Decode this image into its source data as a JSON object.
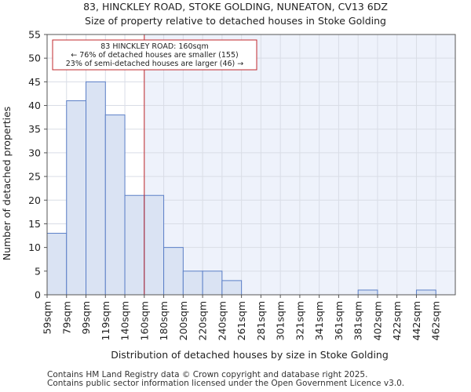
{
  "chart_data": {
    "type": "bar",
    "title_line1": "83, HINCKLEY ROAD, STOKE GOLDING, NUNEATON, CV13 6DZ",
    "title_line2": "Size of property relative to detached houses in Stoke Golding",
    "xlabel": "Distribution of detached houses by size in Stoke Golding",
    "ylabel": "Number of detached properties",
    "ylim": [
      0,
      55
    ],
    "yticks": [
      0,
      5,
      10,
      15,
      20,
      25,
      30,
      35,
      40,
      45,
      50,
      55
    ],
    "categories": [
      "59sqm",
      "79sqm",
      "99sqm",
      "119sqm",
      "140sqm",
      "160sqm",
      "180sqm",
      "200sqm",
      "220sqm",
      "240sqm",
      "261sqm",
      "281sqm",
      "301sqm",
      "321sqm",
      "341sqm",
      "361sqm",
      "381sqm",
      "402sqm",
      "422sqm",
      "442sqm",
      "462sqm"
    ],
    "values": [
      13,
      41,
      45,
      38,
      21,
      21,
      10,
      5,
      5,
      3,
      0,
      0,
      0,
      0,
      0,
      0,
      1,
      0,
      0,
      1,
      0
    ],
    "marker_category_index": 5,
    "annotation": {
      "line1": "83 HINCKLEY ROAD: 160sqm",
      "line2": "← 76% of detached houses are smaller (155)",
      "line3": "23% of semi-detached houses are larger (46) →"
    },
    "colors": {
      "bar_fill": "#dae3f3",
      "bar_stroke": "#5b7fc7",
      "highlight_bg": "#eef2fb",
      "marker": "#c0282d",
      "grid": "#d9dde6"
    }
  },
  "footer": {
    "line1": "Contains HM Land Registry data © Crown copyright and database right 2025.",
    "line2": "Contains public sector information licensed under the Open Government Licence v3.0."
  }
}
